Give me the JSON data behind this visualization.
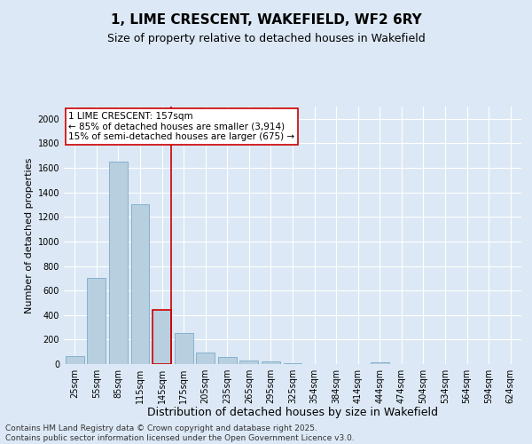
{
  "title": "1, LIME CRESCENT, WAKEFIELD, WF2 6RY",
  "subtitle": "Size of property relative to detached houses in Wakefield",
  "xlabel": "Distribution of detached houses by size in Wakefield",
  "ylabel": "Number of detached properties",
  "categories": [
    "25sqm",
    "55sqm",
    "85sqm",
    "115sqm",
    "145sqm",
    "175sqm",
    "205sqm",
    "235sqm",
    "265sqm",
    "295sqm",
    "325sqm",
    "354sqm",
    "384sqm",
    "414sqm",
    "444sqm",
    "474sqm",
    "504sqm",
    "534sqm",
    "564sqm",
    "594sqm",
    "624sqm"
  ],
  "values": [
    65,
    700,
    1650,
    1305,
    440,
    255,
    95,
    55,
    30,
    22,
    10,
    0,
    0,
    0,
    12,
    0,
    0,
    0,
    0,
    0,
    0
  ],
  "bar_color": "#b8cfe0",
  "bar_edge_color": "#7aaac8",
  "highlight_bar_index": 4,
  "highlight_bar_edge_color": "#cc0000",
  "vline_color": "#cc0000",
  "annotation_text": "1 LIME CRESCENT: 157sqm\n← 85% of detached houses are smaller (3,914)\n15% of semi-detached houses are larger (675) →",
  "annotation_box_color": "#ffffff",
  "annotation_box_edge_color": "#cc0000",
  "ylim": [
    0,
    2100
  ],
  "yticks": [
    0,
    200,
    400,
    600,
    800,
    1000,
    1200,
    1400,
    1600,
    1800,
    2000
  ],
  "background_color": "#dce8f5",
  "grid_color": "#ffffff",
  "footer_text": "Contains HM Land Registry data © Crown copyright and database right 2025.\nContains public sector information licensed under the Open Government Licence v3.0.",
  "title_fontsize": 11,
  "subtitle_fontsize": 9,
  "xlabel_fontsize": 9,
  "ylabel_fontsize": 8,
  "tick_fontsize": 7,
  "annotation_fontsize": 7.5,
  "footer_fontsize": 6.5
}
